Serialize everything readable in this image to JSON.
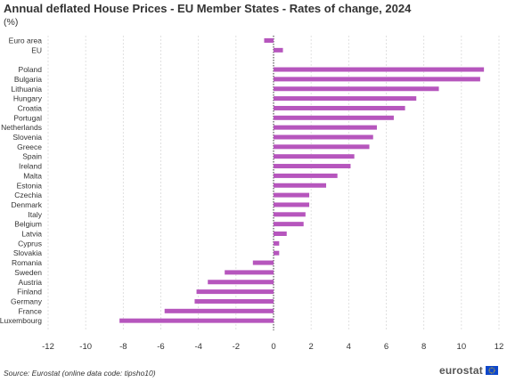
{
  "title": "Annual deflated House Prices - EU Member States - Rates of change, 2024",
  "subtitle": "(%)",
  "source": "Source: Eurostat (online data code: tipsho10)",
  "logo_text": "eurostat",
  "chart_data": {
    "type": "bar",
    "orientation": "horizontal",
    "categories": [
      "Euro area",
      "EU",
      "",
      "Poland",
      "Bulgaria",
      "Lithuania",
      "Hungary",
      "Croatia",
      "Portugal",
      "Netherlands",
      "Slovenia",
      "Greece",
      "Spain",
      "Ireland",
      "Malta",
      "Estonia",
      "Czechia",
      "Denmark",
      "Italy",
      "Belgium",
      "Latvia",
      "Cyprus",
      "Slovakia",
      "Romania",
      "Sweden",
      "Austria",
      "Finland",
      "Germany",
      "France",
      "Luxembourg"
    ],
    "values": [
      -0.5,
      0.5,
      null,
      11.2,
      11.0,
      8.8,
      7.6,
      7.0,
      6.4,
      5.5,
      5.3,
      5.1,
      4.3,
      4.1,
      3.4,
      2.8,
      1.9,
      1.9,
      1.7,
      1.6,
      0.7,
      0.3,
      0.3,
      -1.1,
      -2.6,
      -3.5,
      -4.1,
      -4.2,
      -5.8,
      -8.2
    ],
    "xlim": [
      -12,
      12
    ],
    "xticks": [
      "-12",
      "-10",
      "-8",
      "-6",
      "-4",
      "-2",
      "0",
      "2",
      "4",
      "6",
      "8",
      "10",
      "12"
    ],
    "grid": "vertical",
    "bar_color": "#b656bd"
  }
}
